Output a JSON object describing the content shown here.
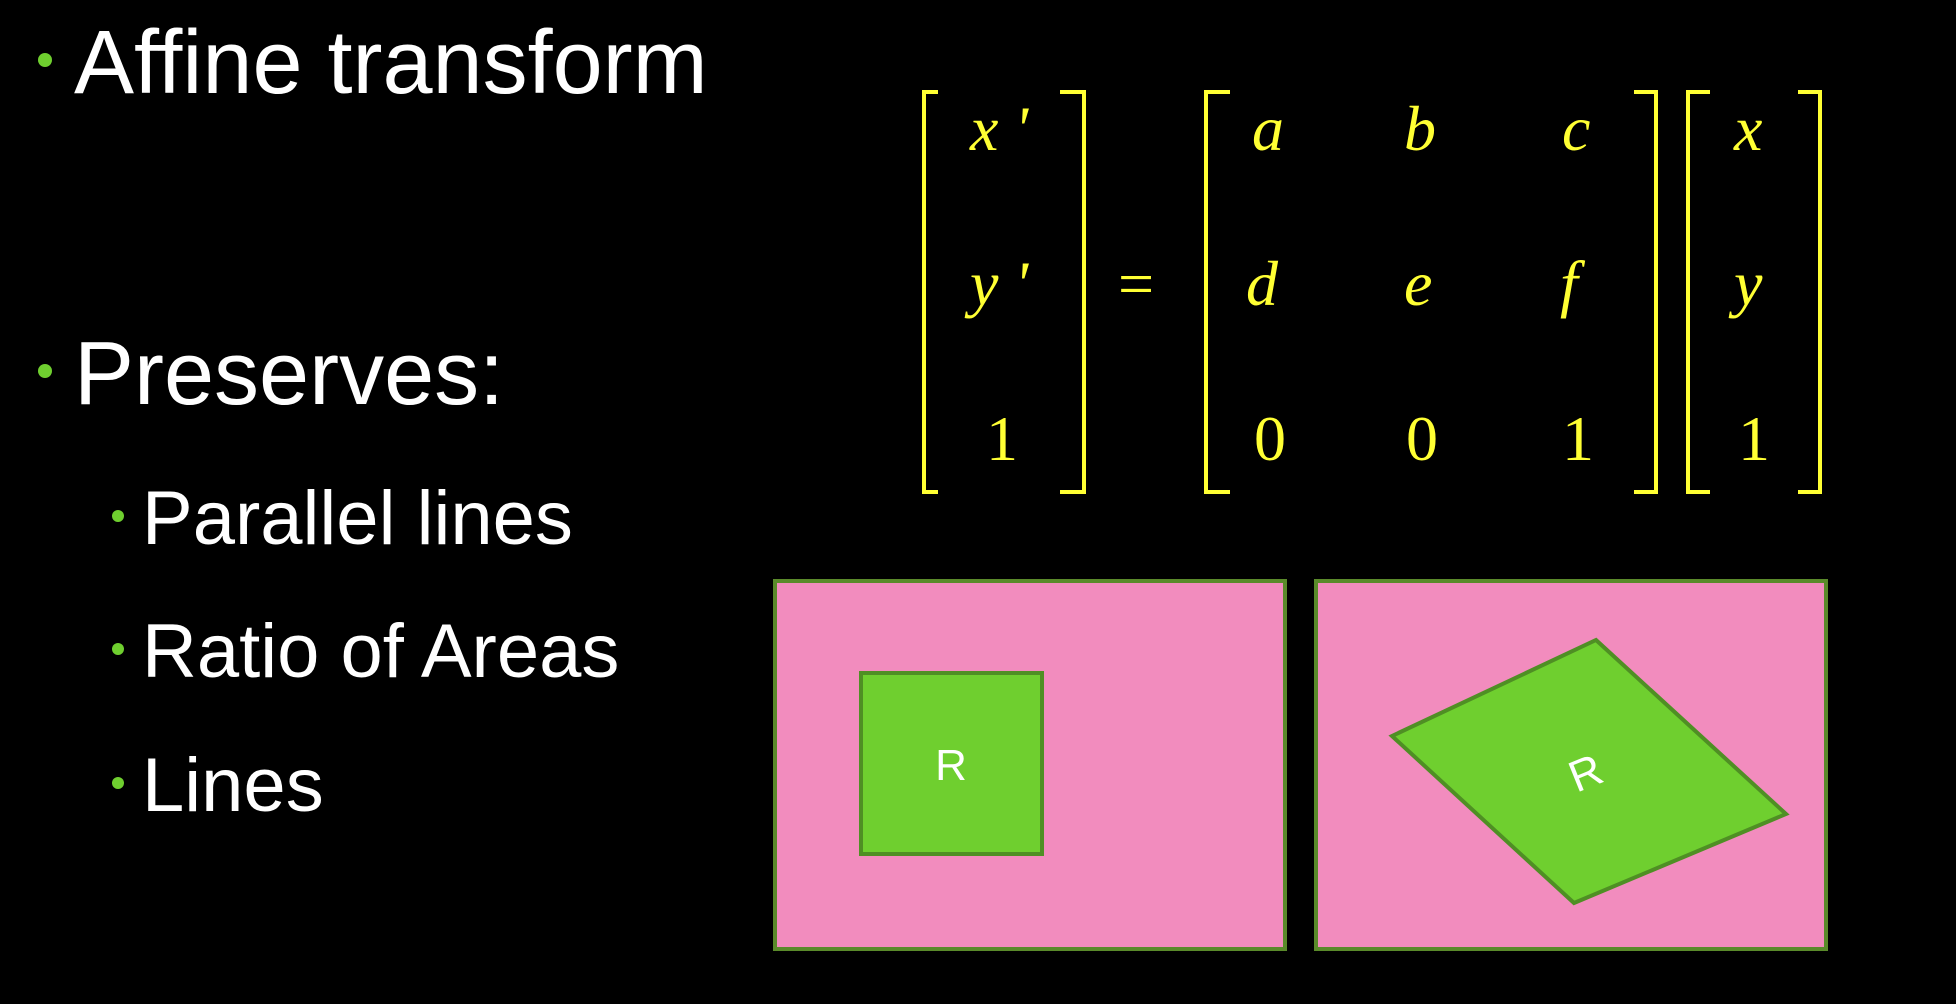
{
  "bullets": {
    "title": "Affine transform",
    "preserves": "Preserves:",
    "items": [
      "Parallel lines",
      "Ratio of Areas",
      "Lines"
    ]
  },
  "matrix": {
    "lhs": [
      "x '",
      "y '",
      "1"
    ],
    "equals": "=",
    "m": [
      [
        "a",
        "b",
        "c"
      ],
      [
        "d",
        "e",
        "f"
      ],
      [
        "0",
        "0",
        "1"
      ]
    ],
    "rhs": [
      "x",
      "y",
      "1"
    ]
  },
  "panels": {
    "left_label": "R",
    "right_label": "R"
  },
  "colors": {
    "background": "#000000",
    "text": "#ffffff",
    "bullet": "#6fcf2f",
    "math": "#ffff33",
    "panel_fill": "#f28cbe",
    "panel_border": "#5a8a2a",
    "shape_fill": "#6fcf2f",
    "shape_border": "#4f8f24"
  }
}
